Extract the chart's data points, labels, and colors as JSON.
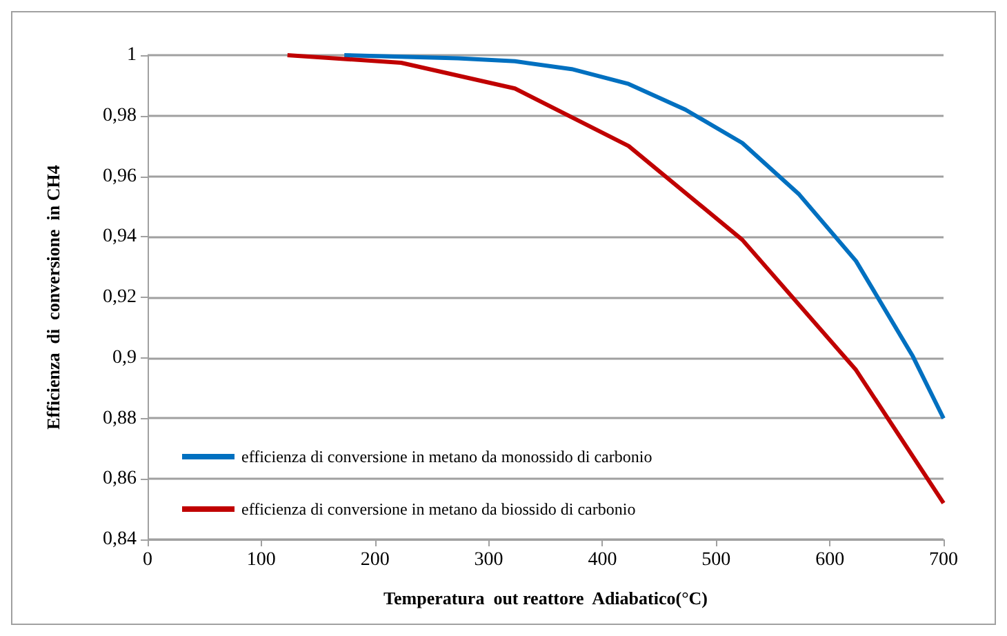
{
  "chart_data": {
    "type": "line",
    "xlabel": "Temperatura  out reattore  Adiabatico(°C)",
    "ylabel": "Efficienza  di  conversione  in CH4",
    "xlim": [
      0,
      700
    ],
    "xticks": [
      0,
      100,
      200,
      300,
      400,
      500,
      600,
      700
    ],
    "ylim": [
      0.84,
      1
    ],
    "yticks": [
      {
        "value": 0.84,
        "label": "0,84"
      },
      {
        "value": 0.86,
        "label": "0,86"
      },
      {
        "value": 0.88,
        "label": "0,88"
      },
      {
        "value": 0.9,
        "label": "0,9"
      },
      {
        "value": 0.92,
        "label": "0,92"
      },
      {
        "value": 0.94,
        "label": "0,94"
      },
      {
        "value": 0.96,
        "label": "0,96"
      },
      {
        "value": 0.98,
        "label": "0,98"
      },
      {
        "value": 1,
        "label": "1"
      }
    ],
    "grid": "y",
    "legend": "bottom left",
    "marker": "none",
    "line_style": "solid",
    "series": [
      {
        "name": "efficienza di conversione in metano da monossido di carbonio",
        "color": "#0070c0",
        "x": [
          173,
          223,
          273,
          323,
          373,
          423,
          473,
          523,
          573,
          623,
          673,
          700
        ],
        "values": [
          1,
          0.9995,
          0.999,
          0.998,
          0.9954,
          0.9905,
          0.982,
          0.971,
          0.954,
          0.932,
          0.9005,
          0.88
        ]
      },
      {
        "name": "efficienza di conversione in metano da biossido di carbonio",
        "color": "#c00000",
        "x": [
          123,
          223,
          323,
          423,
          523,
          623,
          700
        ],
        "values": [
          1,
          0.9975,
          0.989,
          0.97,
          0.939,
          0.896,
          0.852
        ]
      }
    ]
  }
}
